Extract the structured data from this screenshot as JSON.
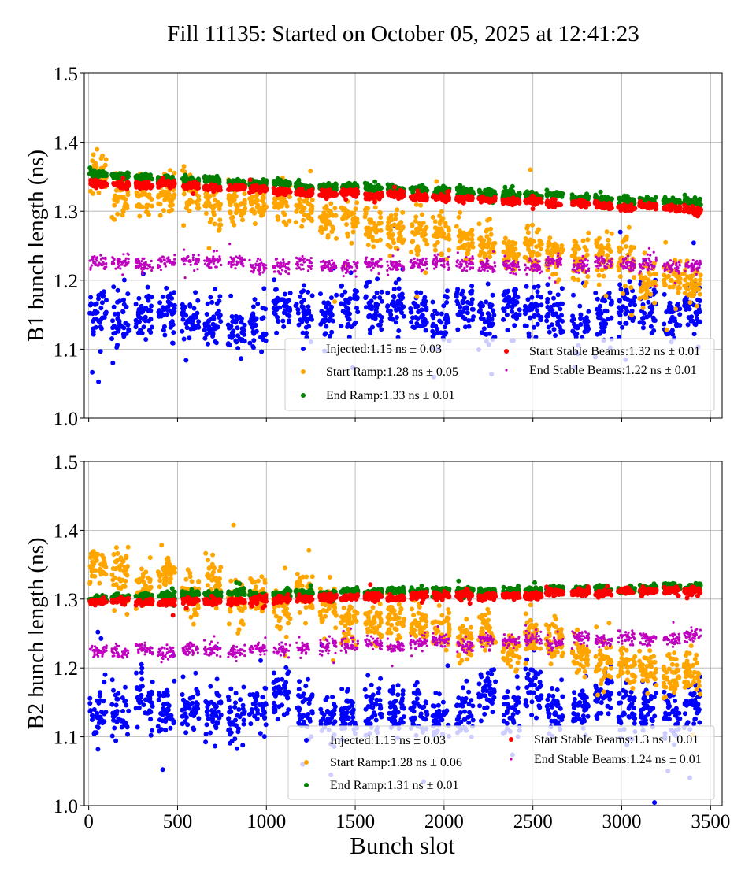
{
  "chart_data": {
    "type": "scatter",
    "title": "Fill 11135: Started on October 05, 2025 at 12:41:23",
    "xlabel": "Bunch slot",
    "xlim": [
      -25,
      3565
    ],
    "xticks": [
      "0",
      "500",
      "1000",
      "1500",
      "2000",
      "2500",
      "3000",
      "3500"
    ],
    "xtick_values": [
      0,
      500,
      1000,
      1500,
      2000,
      2500,
      3000,
      3500
    ],
    "grid": true,
    "legend_placement": "lower-right",
    "train_starts": [
      5,
      130,
      265,
      390,
      525,
      650,
      785,
      905,
      1040,
      1165,
      1300,
      1420,
      1555,
      1680,
      1810,
      1935,
      2070,
      2195,
      2330,
      2455,
      2575,
      2720,
      2850,
      2980,
      3100,
      3235,
      3350
    ],
    "train_length": 95,
    "panels": [
      {
        "ylabel": "B1 bunch length (ns)",
        "ylim": [
          1.0,
          1.5
        ],
        "yticks": [
          "1.0",
          "1.1",
          "1.2",
          "1.3",
          "1.4",
          "1.5"
        ],
        "ytick_values": [
          1.0,
          1.1,
          1.2,
          1.3,
          1.4,
          1.5
        ],
        "show_xticklabels": false,
        "series": [
          {
            "name": "Injected:1.15 ns ± 0.03",
            "color": "#0000ff",
            "trend": [
              1.14,
              1.15
            ],
            "spread": 0.03,
            "marker": "large"
          },
          {
            "name": "Start Ramp:1.28 ns ± 0.05",
            "color": "#ffa500",
            "trend": [
              1.345,
              1.2
            ],
            "spread": 0.025,
            "marker": "large"
          },
          {
            "name": "End Ramp:1.33 ns ± 0.01",
            "color": "#008000",
            "trend": [
              1.352,
              1.312
            ],
            "spread": 0.004,
            "marker": "large"
          },
          {
            "name": "Start Stable Beams:1.32 ns ± 0.01",
            "color": "#ff0000",
            "trend": [
              1.342,
              1.302
            ],
            "spread": 0.004,
            "marker": "large"
          },
          {
            "name": "End Stable Beams:1.22 ns ± 0.01",
            "color": "#bf00bf",
            "trend": [
              1.225,
              1.222
            ],
            "spread": 0.008,
            "marker": "small"
          }
        ]
      },
      {
        "ylabel": "B2 bunch length (ns)",
        "ylim": [
          1.0,
          1.5
        ],
        "yticks": [
          "1.0",
          "1.1",
          "1.2",
          "1.3",
          "1.4",
          "1.5"
        ],
        "ytick_values": [
          1.0,
          1.1,
          1.2,
          1.3,
          1.4,
          1.5
        ],
        "show_xticklabels": true,
        "series": [
          {
            "name": "Injected:1.15 ns ± 0.03",
            "color": "#0000ff",
            "trend": [
              1.14,
              1.15
            ],
            "spread": 0.03,
            "marker": "large"
          },
          {
            "name": "Start Ramp:1.28 ns ± 0.06",
            "color": "#ffa500",
            "trend": [
              1.345,
              1.19
            ],
            "spread": 0.025,
            "marker": "large"
          },
          {
            "name": "End Ramp:1.31 ns ± 0.01",
            "color": "#008000",
            "trend": [
              1.302,
              1.318
            ],
            "spread": 0.004,
            "marker": "large"
          },
          {
            "name": "Start Stable Beams:1.3 ns ± 0.01",
            "color": "#ff0000",
            "trend": [
              1.295,
              1.312
            ],
            "spread": 0.004,
            "marker": "large"
          },
          {
            "name": "End Stable Beams:1.24 ns ± 0.01",
            "color": "#bf00bf",
            "trend": [
              1.222,
              1.245
            ],
            "spread": 0.008,
            "marker": "small"
          }
        ]
      }
    ]
  }
}
